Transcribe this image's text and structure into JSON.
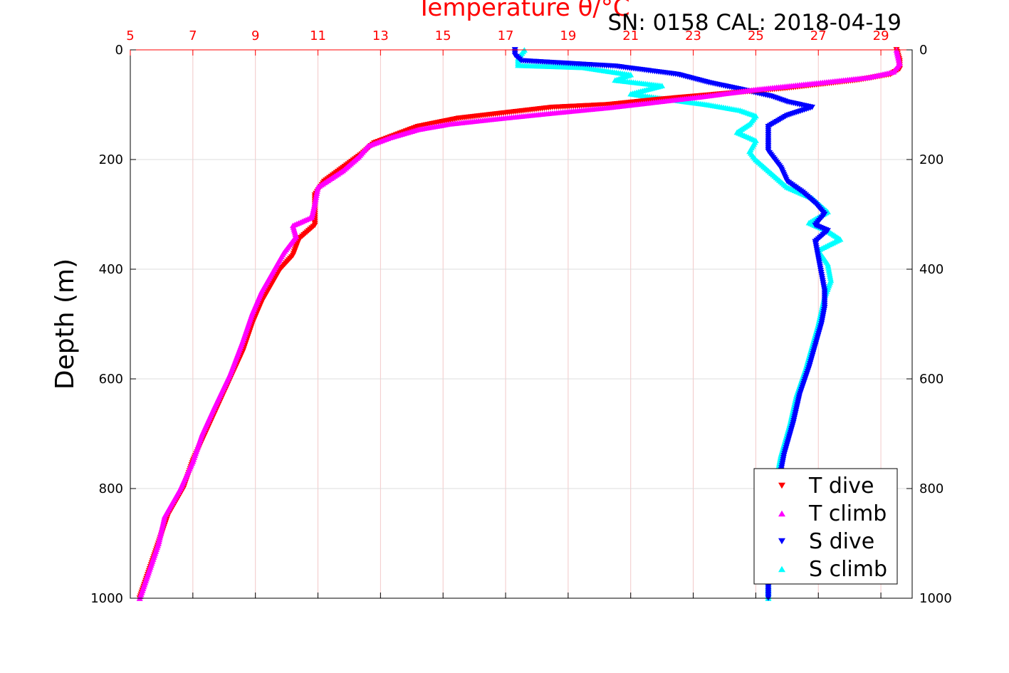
{
  "chart_data": {
    "type": "scatter",
    "title": "Temperature θ/°C",
    "subtitle": "SN: 0158  CAL: 2018-04-19",
    "ylabel": "Depth (m)",
    "x_top_ticks": [
      "5",
      "7",
      "9",
      "11",
      "13",
      "15",
      "17",
      "19",
      "21",
      "23",
      "25",
      "27",
      "29"
    ],
    "x_top_range": [
      5,
      30
    ],
    "y_ticks": [
      "0",
      "200",
      "400",
      "600",
      "800",
      "1000"
    ],
    "y_range": [
      0,
      1000
    ],
    "y_reversed": true,
    "grid": true,
    "legend_position": "bottom-right",
    "series": [
      {
        "name": "T dive",
        "marker": "triangle-down",
        "color": "#ff0000",
        "points": [
          [
            29.5,
            0
          ],
          [
            29.6,
            20
          ],
          [
            29.6,
            35
          ],
          [
            29.3,
            45
          ],
          [
            28.3,
            55
          ],
          [
            26.0,
            70
          ],
          [
            24.0,
            80
          ],
          [
            22.0,
            90
          ],
          [
            20.3,
            100
          ],
          [
            18.5,
            105
          ],
          [
            17.0,
            115
          ],
          [
            15.5,
            125
          ],
          [
            14.2,
            140
          ],
          [
            13.5,
            155
          ],
          [
            12.8,
            170
          ],
          [
            12.4,
            190
          ],
          [
            11.8,
            215
          ],
          [
            11.2,
            240
          ],
          [
            10.9,
            265
          ],
          [
            10.9,
            295
          ],
          [
            10.9,
            320
          ],
          [
            10.4,
            345
          ],
          [
            10.2,
            375
          ],
          [
            9.8,
            400
          ],
          [
            9.5,
            430
          ],
          [
            9.2,
            460
          ],
          [
            8.9,
            500
          ],
          [
            8.6,
            550
          ],
          [
            8.2,
            600
          ],
          [
            7.8,
            650
          ],
          [
            7.4,
            700
          ],
          [
            7.0,
            750
          ],
          [
            6.7,
            800
          ],
          [
            6.2,
            850
          ],
          [
            5.9,
            900
          ],
          [
            5.6,
            950
          ],
          [
            5.3,
            1000
          ]
        ]
      },
      {
        "name": "T climb",
        "marker": "triangle-up",
        "color": "#ff00ff",
        "points": [
          [
            29.5,
            0
          ],
          [
            29.6,
            25
          ],
          [
            29.4,
            40
          ],
          [
            28.6,
            50
          ],
          [
            27.0,
            60
          ],
          [
            25.0,
            72
          ],
          [
            23.3,
            85
          ],
          [
            21.8,
            95
          ],
          [
            20.3,
            105
          ],
          [
            18.5,
            115
          ],
          [
            16.8,
            125
          ],
          [
            15.2,
            135
          ],
          [
            14.2,
            145
          ],
          [
            13.3,
            160
          ],
          [
            12.6,
            175
          ],
          [
            12.3,
            195
          ],
          [
            11.8,
            220
          ],
          [
            11.0,
            250
          ],
          [
            10.9,
            280
          ],
          [
            10.8,
            305
          ],
          [
            10.2,
            320
          ],
          [
            10.3,
            340
          ],
          [
            9.9,
            370
          ],
          [
            9.6,
            400
          ],
          [
            9.2,
            440
          ],
          [
            8.9,
            480
          ],
          [
            8.6,
            530
          ],
          [
            8.2,
            590
          ],
          [
            7.7,
            650
          ],
          [
            7.3,
            700
          ],
          [
            7.0,
            750
          ],
          [
            6.6,
            800
          ],
          [
            6.1,
            850
          ],
          [
            5.9,
            900
          ],
          [
            5.6,
            950
          ],
          [
            5.3,
            1000
          ]
        ]
      },
      {
        "name": "S dive",
        "marker": "triangle-down",
        "color": "#0000ff",
        "points": [
          [
            17.3,
            0
          ],
          [
            17.3,
            10
          ],
          [
            17.5,
            20
          ],
          [
            20.5,
            30
          ],
          [
            22.5,
            45
          ],
          [
            23.5,
            60
          ],
          [
            24.5,
            72
          ],
          [
            25.5,
            85
          ],
          [
            26.0,
            95
          ],
          [
            26.8,
            105
          ],
          [
            26.0,
            120
          ],
          [
            25.4,
            140
          ],
          [
            25.4,
            165
          ],
          [
            25.4,
            185
          ],
          [
            25.8,
            215
          ],
          [
            26.0,
            240
          ],
          [
            26.5,
            260
          ],
          [
            26.9,
            280
          ],
          [
            27.2,
            300
          ],
          [
            26.9,
            320
          ],
          [
            27.3,
            330
          ],
          [
            26.9,
            350
          ],
          [
            27.0,
            380
          ],
          [
            27.1,
            410
          ],
          [
            27.2,
            440
          ],
          [
            27.2,
            470
          ],
          [
            27.1,
            500
          ],
          [
            26.9,
            540
          ],
          [
            26.7,
            580
          ],
          [
            26.4,
            630
          ],
          [
            26.2,
            680
          ],
          [
            25.9,
            740
          ],
          [
            25.7,
            800
          ],
          [
            25.6,
            860
          ],
          [
            25.5,
            920
          ],
          [
            25.4,
            980
          ],
          [
            25.4,
            1000
          ]
        ]
      },
      {
        "name": "S climb",
        "marker": "triangle-up",
        "color": "#00ffff",
        "points": [
          [
            17.6,
            0
          ],
          [
            17.4,
            15
          ],
          [
            17.4,
            28
          ],
          [
            19.5,
            32
          ],
          [
            21.0,
            45
          ],
          [
            20.5,
            55
          ],
          [
            22.0,
            65
          ],
          [
            21.0,
            80
          ],
          [
            22.2,
            90
          ],
          [
            23.5,
            100
          ],
          [
            24.5,
            110
          ],
          [
            25.0,
            120
          ],
          [
            24.8,
            135
          ],
          [
            24.4,
            150
          ],
          [
            25.0,
            165
          ],
          [
            24.8,
            185
          ],
          [
            25.0,
            200
          ],
          [
            25.5,
            225
          ],
          [
            26.0,
            250
          ],
          [
            26.8,
            270
          ],
          [
            27.3,
            295
          ],
          [
            26.7,
            315
          ],
          [
            27.3,
            330
          ],
          [
            27.7,
            345
          ],
          [
            27.0,
            365
          ],
          [
            27.3,
            390
          ],
          [
            27.4,
            420
          ],
          [
            27.2,
            450
          ],
          [
            27.0,
            500
          ],
          [
            26.8,
            540
          ],
          [
            26.6,
            580
          ],
          [
            26.3,
            630
          ],
          [
            26.1,
            680
          ],
          [
            25.8,
            740
          ],
          [
            25.6,
            800
          ],
          [
            25.5,
            860
          ],
          [
            25.4,
            920
          ],
          [
            25.4,
            980
          ],
          [
            25.4,
            1000
          ]
        ]
      }
    ]
  }
}
